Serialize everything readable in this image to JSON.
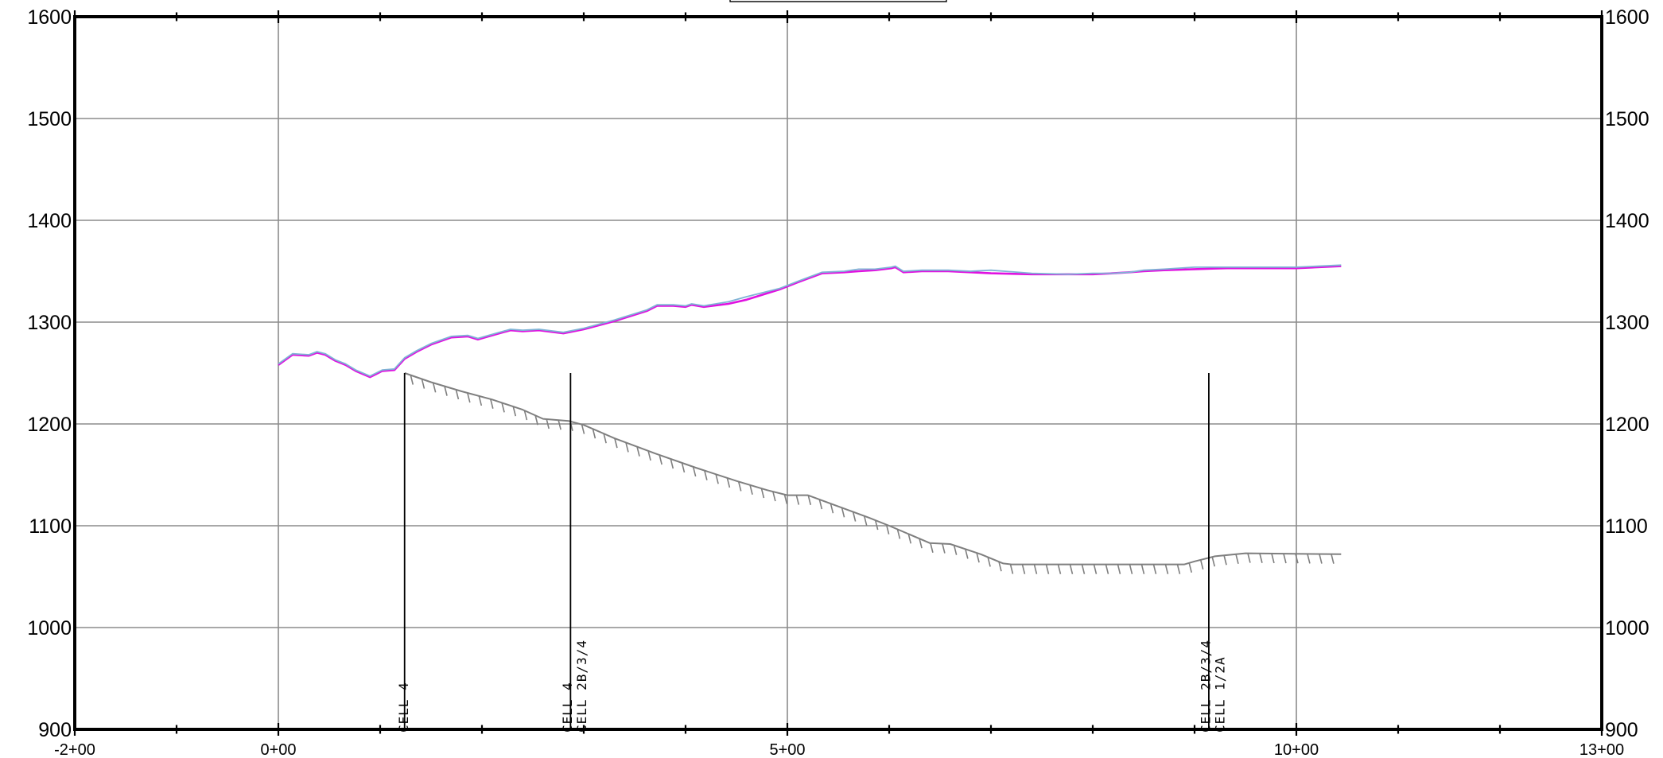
{
  "chart_data": {
    "type": "line",
    "title": "",
    "xlabel": "",
    "ylabel": "",
    "xlim": [
      -200,
      1300
    ],
    "ylim": [
      900,
      1600
    ],
    "x_major_ticks": [
      -200,
      0,
      500,
      1000,
      1300
    ],
    "x_tick_labels": [
      "-2+00",
      "0+00",
      "5+00",
      "10+00",
      "13+00"
    ],
    "y_ticks": [
      900,
      1000,
      1100,
      1200,
      1300,
      1400,
      1500,
      1600
    ],
    "y_tick_labels": [
      "900",
      "1000",
      "1100",
      "1200",
      "1300",
      "1400",
      "1500",
      "1600"
    ],
    "grid": true,
    "colors": {
      "ground_surface": "#e011e0",
      "ground_surface_alt": "#7fb3d5",
      "lower_profile": "#7f7f7f",
      "grid": "#8c8c8c",
      "frame": "#000000"
    },
    "series": [
      {
        "key": "ground_surface",
        "x": [
          0,
          14,
          30,
          38,
          46,
          56,
          66,
          76,
          90,
          96,
          102,
          114,
          124,
          136,
          150,
          170,
          186,
          196,
          210,
          228,
          240,
          256,
          280,
          300,
          330,
          362,
          372,
          388,
          400,
          406,
          418,
          442,
          460,
          492,
          510,
          534,
          556,
          570,
          586,
          602,
          606,
          614,
          632,
          658,
          680,
          700,
          740,
          776,
          800,
          820,
          836,
          850,
          870,
          900,
          932,
          960,
          1000,
          1044
        ],
        "y": [
          1258,
          1268,
          1267,
          1270,
          1268,
          1262,
          1258,
          1252,
          1246,
          1249,
          1252,
          1253,
          1264,
          1271,
          1278,
          1285,
          1286,
          1283,
          1287,
          1292,
          1291,
          1292,
          1289,
          1293,
          1301,
          1311,
          1316,
          1316,
          1315,
          1317,
          1315,
          1318,
          1322,
          1332,
          1339,
          1348,
          1349,
          1350,
          1351,
          1353,
          1354,
          1349,
          1350,
          1350,
          1349,
          1348,
          1347,
          1347,
          1347,
          1348,
          1349,
          1350,
          1351,
          1352,
          1353,
          1353,
          1353,
          1355
        ]
      },
      {
        "key": "ground_surface_alt",
        "x": [
          0,
          14,
          30,
          38,
          46,
          56,
          66,
          76,
          90,
          96,
          102,
          114,
          124,
          136,
          150,
          170,
          186,
          196,
          210,
          228,
          240,
          256,
          280,
          300,
          330,
          362,
          372,
          388,
          400,
          406,
          418,
          442,
          460,
          492,
          510,
          534,
          556,
          570,
          586,
          602,
          606,
          614,
          632,
          658,
          680,
          700,
          740,
          776,
          800,
          820,
          836,
          850,
          870,
          900,
          932,
          960,
          1000,
          1044
        ],
        "y": [
          1259,
          1269,
          1268,
          1271,
          1269,
          1263,
          1259,
          1253,
          1247,
          1250,
          1253,
          1254,
          1265,
          1272,
          1279,
          1286,
          1287,
          1284,
          1288,
          1293,
          1292,
          1293,
          1290,
          1294,
          1302,
          1312,
          1317,
          1317,
          1316,
          1318,
          1316,
          1320,
          1325,
          1333,
          1340,
          1349,
          1350,
          1352,
          1352,
          1354,
          1355,
          1350,
          1351,
          1351,
          1350,
          1351,
          1348,
          1347,
          1348,
          1348,
          1349,
          1351,
          1352,
          1354,
          1354,
          1354,
          1354,
          1356
        ]
      },
      {
        "key": "lower_profile",
        "x": [
          124,
          150,
          180,
          210,
          240,
          260,
          285,
          300,
          330,
          370,
          410,
          450,
          480,
          500,
          520,
          550,
          580,
          600,
          640,
          660,
          690,
          712,
          720,
          740,
          760,
          790,
          820,
          850,
          870,
          890,
          900,
          920,
          950,
          1044
        ],
        "y": [
          1250,
          1241,
          1232,
          1224,
          1214,
          1205,
          1203,
          1199,
          1186,
          1171,
          1157,
          1144,
          1135,
          1130,
          1130,
          1119,
          1108,
          1100,
          1083,
          1082,
          1072,
          1063,
          1062,
          1062,
          1062,
          1062,
          1062,
          1062,
          1062,
          1062,
          1065,
          1070,
          1073,
          1072
        ]
      }
    ],
    "cell_markers": [
      {
        "x": 124,
        "labels": [
          "CELL 4"
        ]
      },
      {
        "x": 287,
        "labels": [
          "CELL 4",
          "CELL 2B/3/4"
        ]
      },
      {
        "x": 914,
        "labels": [
          "CELL 2B/3/4",
          "CELL 1/2A"
        ]
      }
    ],
    "cell_marker_top": 1250
  }
}
